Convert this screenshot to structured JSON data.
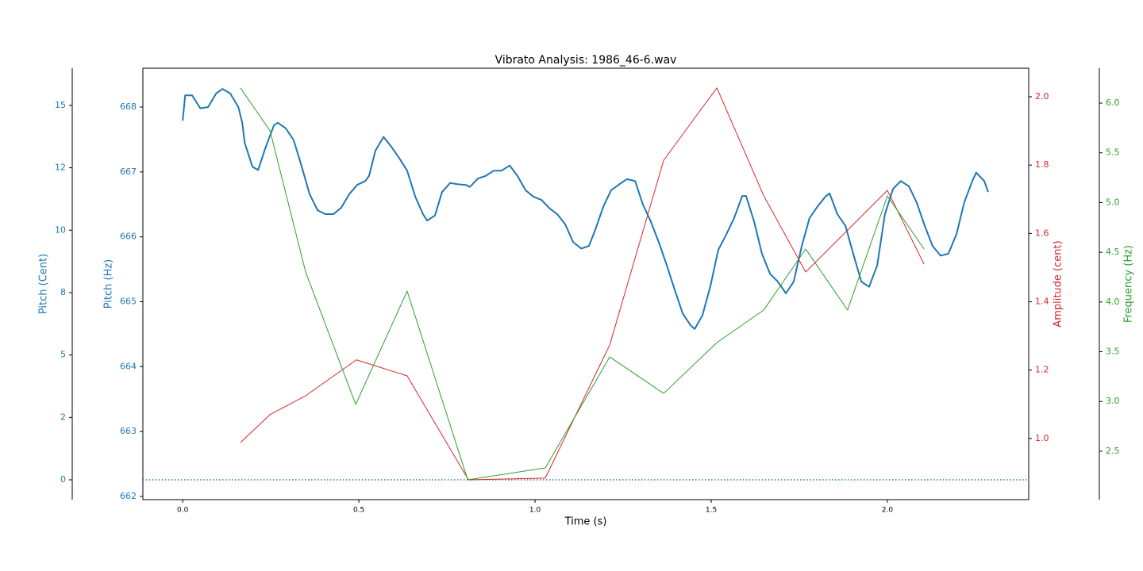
{
  "chart_data": {
    "type": "line",
    "title": "Vibrato Analysis: 1986_46-6.wav",
    "xlabel": "Time (s)",
    "xlim": [
      -0.113,
      2.401
    ],
    "xticks": [
      {
        "value": 0,
        "label": "0.0"
      },
      0.5,
      {
        "value": 1,
        "label": "1.0"
      },
      1.5,
      {
        "value": 2,
        "label": "2.0"
      }
    ],
    "ylabel": "Pitch (Hz)",
    "ylim": [
      661.951,
      668.599
    ],
    "yticks": [
      662,
      663,
      664,
      665,
      666,
      667,
      668
    ],
    "y2label": "Pitch (Cent)",
    "y2lim": [
      -0.794,
      16.49
    ],
    "y2ticks": [
      0,
      {
        "value": 2.5,
        "label": "2"
      },
      5,
      {
        "value": 7.5,
        "label": "8"
      },
      10,
      {
        "value": 12.5,
        "label": "12"
      },
      15
    ],
    "y3label": "Amplitude (cent)",
    "y3lim": [
      0.821,
      2.0835
    ],
    "y3ticks": [
      {
        "value": 1,
        "label": "1.0"
      },
      1.2,
      1.4,
      1.6,
      1.8,
      {
        "value": 2,
        "label": "2.0"
      }
    ],
    "y4label": "Frequency (Hz)",
    "y4lim": [
      2.013,
      6.351
    ],
    "y4ticks": [
      2.5,
      {
        "value": 3,
        "label": "3.0"
      },
      3.5,
      {
        "value": 4,
        "label": "4.0"
      },
      4.5,
      {
        "value": 5,
        "label": "5.0"
      },
      5.5,
      {
        "value": 6,
        "label": "6.0"
      }
    ],
    "y_color": "#1f77b4",
    "y2_color": "#1f77b4",
    "y3_color": "#d62728",
    "y4_color": "#2ca02c",
    "hline_y2": 0,
    "series": [
      {
        "color": "#1f77b4",
        "axis": "y",
        "width": 2,
        "x": [
          0.0,
          0.007,
          0.027,
          0.05,
          0.072,
          0.095,
          0.113,
          0.135,
          0.158,
          0.169,
          0.176,
          0.198,
          0.214,
          0.236,
          0.259,
          0.27,
          0.293,
          0.315,
          0.338,
          0.36,
          0.383,
          0.405,
          0.428,
          0.45,
          0.473,
          0.495,
          0.518,
          0.529,
          0.547,
          0.57,
          0.592,
          0.615,
          0.637,
          0.66,
          0.682,
          0.694,
          0.716,
          0.736,
          0.759,
          0.782,
          0.804,
          0.815,
          0.838,
          0.86,
          0.883,
          0.905,
          0.928,
          0.95,
          0.973,
          0.995,
          1.018,
          1.041,
          1.063,
          1.086,
          1.108,
          1.131,
          1.153,
          1.171,
          1.194,
          1.216,
          1.239,
          1.261,
          1.284,
          1.306,
          1.329,
          1.351,
          1.374,
          1.396,
          1.419,
          1.441,
          1.453,
          1.475,
          1.498,
          1.52,
          1.543,
          1.565,
          1.588,
          1.599,
          1.622,
          1.644,
          1.667,
          1.689,
          1.712,
          1.734,
          1.757,
          1.779,
          1.802,
          1.824,
          1.836,
          1.858,
          1.881,
          1.903,
          1.926,
          1.948,
          1.971,
          1.993,
          2.016,
          2.038,
          2.061,
          2.083,
          2.106,
          2.128,
          2.151,
          2.173,
          2.196,
          2.218,
          2.241,
          2.252,
          2.275,
          2.286
        ],
        "values": [
          667.79,
          668.18,
          668.18,
          667.98,
          668.0,
          668.21,
          668.28,
          668.21,
          668.0,
          667.76,
          667.45,
          667.08,
          667.03,
          667.39,
          667.72,
          667.76,
          667.67,
          667.49,
          667.08,
          666.66,
          666.41,
          666.35,
          666.35,
          666.45,
          666.66,
          666.8,
          666.86,
          666.94,
          667.33,
          667.54,
          667.39,
          667.21,
          667.02,
          666.62,
          666.35,
          666.25,
          666.33,
          666.69,
          666.83,
          666.81,
          666.8,
          666.77,
          666.9,
          666.94,
          667.02,
          667.02,
          667.1,
          666.94,
          666.72,
          666.62,
          666.57,
          666.44,
          666.35,
          666.19,
          665.92,
          665.82,
          665.86,
          666.11,
          666.47,
          666.72,
          666.81,
          666.89,
          666.86,
          666.5,
          666.23,
          665.92,
          665.56,
          665.19,
          664.82,
          664.64,
          664.58,
          664.79,
          665.25,
          665.8,
          666.04,
          666.29,
          666.63,
          666.63,
          666.23,
          665.74,
          665.43,
          665.31,
          665.13,
          665.31,
          665.86,
          666.29,
          666.47,
          666.62,
          666.67,
          666.35,
          666.17,
          665.74,
          665.31,
          665.23,
          665.56,
          666.35,
          666.74,
          666.86,
          666.78,
          666.53,
          666.17,
          665.86,
          665.71,
          665.74,
          666.04,
          666.53,
          666.86,
          666.99,
          666.86,
          666.69
        ]
      },
      {
        "color": "#d62728",
        "axis": "y3",
        "width": 1,
        "x": [
          0.164,
          0.248,
          0.349,
          0.493,
          0.637,
          0.811,
          1.029,
          1.212,
          1.365,
          1.516,
          1.649,
          1.768,
          2.0,
          2.104
        ],
        "values": [
          0.988,
          1.07,
          1.125,
          1.23,
          1.183,
          0.879,
          0.884,
          1.274,
          1.814,
          2.026,
          1.71,
          1.487,
          1.726,
          1.51
        ]
      },
      {
        "color": "#2ca02c",
        "axis": "y4",
        "width": 1,
        "x": [
          0.164,
          0.248,
          0.349,
          0.491,
          0.637,
          0.809,
          1.029,
          1.212,
          1.365,
          1.516,
          1.649,
          1.768,
          1.887,
          2.0,
          2.104
        ],
        "values": [
          6.152,
          5.721,
          4.301,
          2.97,
          4.11,
          2.212,
          2.332,
          3.448,
          3.081,
          3.592,
          3.919,
          4.533,
          3.919,
          5.067,
          4.533
        ]
      }
    ]
  }
}
